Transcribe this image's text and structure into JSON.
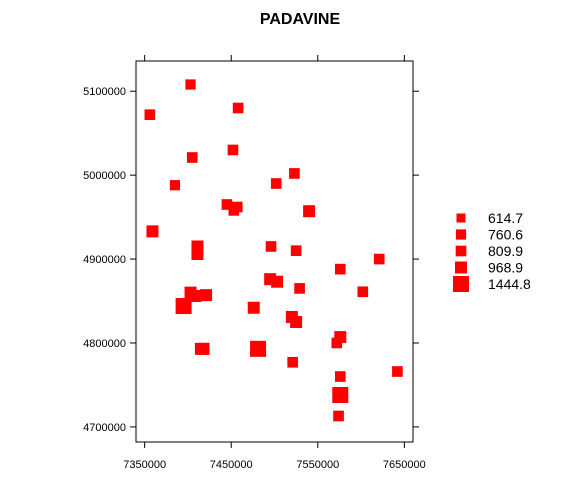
{
  "chart_data": {
    "type": "scatter",
    "title": "PADAVINE",
    "xlabel": "",
    "ylabel": "",
    "xlim": [
      7340000,
      7660000
    ],
    "ylim": [
      4682000,
      5136000
    ],
    "x_ticks": [
      {
        "value": 7350000,
        "label": "7350000"
      },
      {
        "value": 7450000,
        "label": "7450000"
      },
      {
        "value": 7550000,
        "label": "7550000"
      },
      {
        "value": 7650000,
        "label": "7650000"
      }
    ],
    "y_ticks": [
      {
        "value": 4700000,
        "label": "4700000"
      },
      {
        "value": 4800000,
        "label": "4800000"
      },
      {
        "value": 4900000,
        "label": "4900000"
      },
      {
        "value": 5000000,
        "label": "5000000"
      },
      {
        "value": 5100000,
        "label": "5100000"
      }
    ],
    "marker_color": "#FF0000",
    "marker_shape": "square",
    "grid": false,
    "legend_position": "right",
    "legend": [
      {
        "label": "614.7",
        "value": 614.7
      },
      {
        "label": "760.6",
        "value": 760.6
      },
      {
        "label": "809.9",
        "value": 809.9
      },
      {
        "label": "968.9",
        "value": 968.9
      },
      {
        "label": "1444.8",
        "value": 1444.8
      }
    ],
    "points": [
      {
        "x": 7356000,
        "y": 5072000,
        "value": 809.9
      },
      {
        "x": 7403000,
        "y": 5108000,
        "value": 760.6
      },
      {
        "x": 7458000,
        "y": 5080000,
        "value": 809.9
      },
      {
        "x": 7405000,
        "y": 5021000,
        "value": 809.9
      },
      {
        "x": 7452000,
        "y": 5030000,
        "value": 809.9
      },
      {
        "x": 7385000,
        "y": 4988000,
        "value": 760.6
      },
      {
        "x": 7502000,
        "y": 4990000,
        "value": 809.9
      },
      {
        "x": 7523000,
        "y": 5002000,
        "value": 809.9
      },
      {
        "x": 7445000,
        "y": 4965000,
        "value": 809.9
      },
      {
        "x": 7453000,
        "y": 4958000,
        "value": 809.9
      },
      {
        "x": 7457000,
        "y": 4962000,
        "value": 809.9
      },
      {
        "x": 7540000,
        "y": 4957000,
        "value": 968.9
      },
      {
        "x": 7359000,
        "y": 4933000,
        "value": 968.9
      },
      {
        "x": 7411000,
        "y": 4915000,
        "value": 968.9
      },
      {
        "x": 7411000,
        "y": 4906000,
        "value": 968.9
      },
      {
        "x": 7496000,
        "y": 4915000,
        "value": 809.9
      },
      {
        "x": 7525000,
        "y": 4910000,
        "value": 809.9
      },
      {
        "x": 7621000,
        "y": 4900000,
        "value": 809.9
      },
      {
        "x": 7576000,
        "y": 4888000,
        "value": 809.9
      },
      {
        "x": 7495000,
        "y": 4876000,
        "value": 968.9
      },
      {
        "x": 7503000,
        "y": 4873000,
        "value": 968.9
      },
      {
        "x": 7529000,
        "y": 4865000,
        "value": 809.9
      },
      {
        "x": 7602000,
        "y": 4861000,
        "value": 809.9
      },
      {
        "x": 7403000,
        "y": 4860000,
        "value": 968.9
      },
      {
        "x": 7409000,
        "y": 4856000,
        "value": 968.9
      },
      {
        "x": 7421000,
        "y": 4857000,
        "value": 968.9
      },
      {
        "x": 7395000,
        "y": 4844000,
        "value": 1444.8
      },
      {
        "x": 7476000,
        "y": 4842000,
        "value": 968.9
      },
      {
        "x": 7520000,
        "y": 4831000,
        "value": 968.9
      },
      {
        "x": 7525000,
        "y": 4825000,
        "value": 968.9
      },
      {
        "x": 7576000,
        "y": 4807000,
        "value": 968.9
      },
      {
        "x": 7572000,
        "y": 4800000,
        "value": 809.9
      },
      {
        "x": 7415000,
        "y": 4793000,
        "value": 968.9
      },
      {
        "x": 7418000,
        "y": 4793000,
        "value": 968.9
      },
      {
        "x": 7481000,
        "y": 4793000,
        "value": 1444.8
      },
      {
        "x": 7521000,
        "y": 4777000,
        "value": 809.9
      },
      {
        "x": 7642000,
        "y": 4766000,
        "value": 809.9
      },
      {
        "x": 7576000,
        "y": 4760000,
        "value": 809.9
      },
      {
        "x": 7576000,
        "y": 4738000,
        "value": 1444.8
      },
      {
        "x": 7574000,
        "y": 4713000,
        "value": 809.9
      }
    ]
  }
}
